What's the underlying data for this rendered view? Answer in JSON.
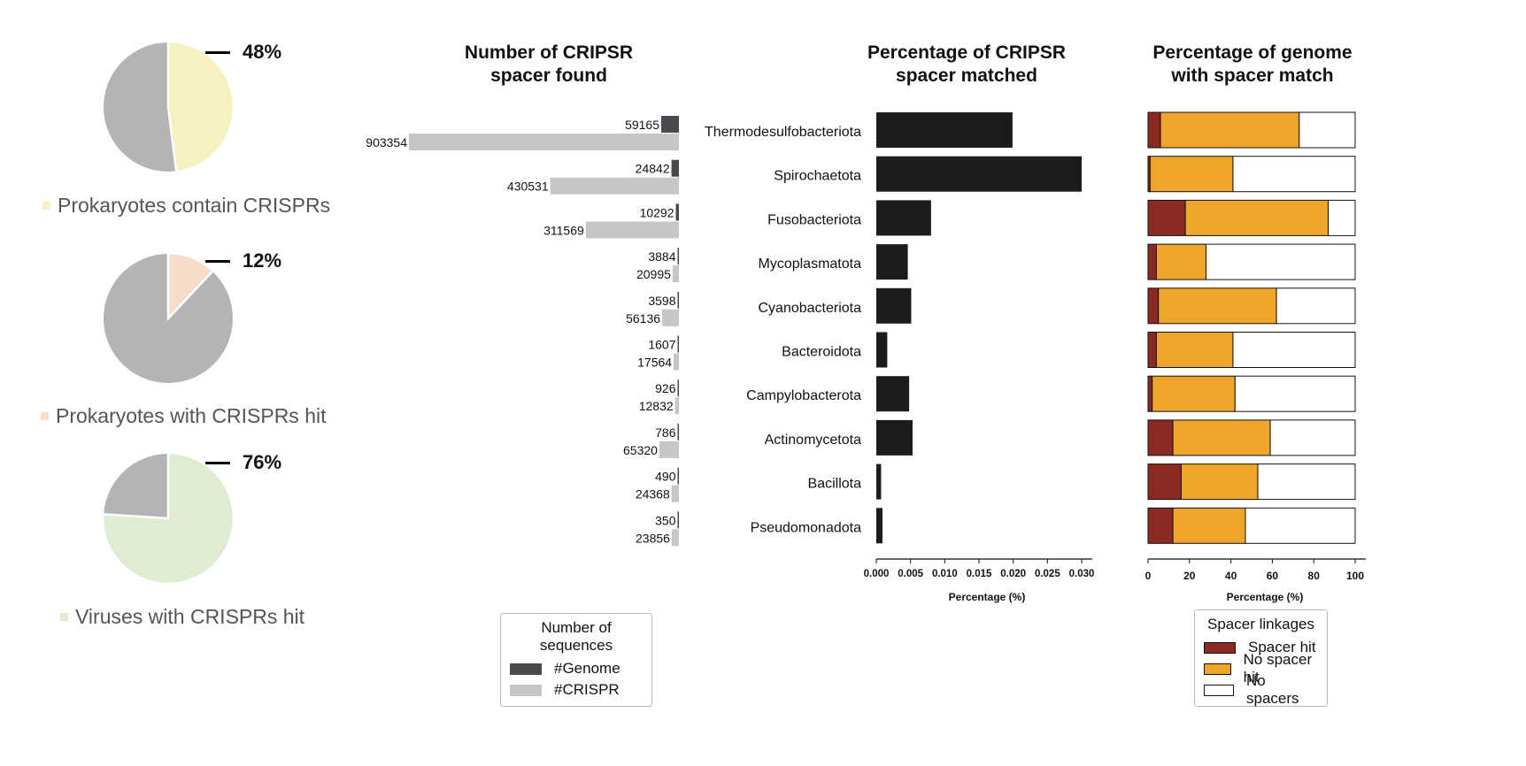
{
  "pies": [
    {
      "pct_label": "48%",
      "value": 48,
      "label": "Prokaryotes contain CRISPRs",
      "color": "#f7f1c2",
      "rest_color": "#b4b4b4"
    },
    {
      "pct_label": "12%",
      "value": 12,
      "label": "Prokaryotes with CRISPRs hit",
      "color": "#f7dcc9",
      "rest_color": "#b4b4b4"
    },
    {
      "pct_label": "76%",
      "value": 76,
      "label": "Viruses with CRISPRs hit",
      "color": "#dfecd1",
      "rest_color": "#b4b4b4"
    }
  ],
  "panel1": {
    "title_line1": "Number of CRIPSR",
    "title_line2": "spacer found",
    "legend_title": "Number of sequences",
    "legend_items": [
      {
        "label": "#Genome",
        "color": "#4a4a4e"
      },
      {
        "label": "#CRISPR",
        "color": "#c6c6c6"
      }
    ]
  },
  "panel2": {
    "title_line1": "Percentage of CRIPSR",
    "title_line2": "spacer matched",
    "xlabel": "Percentage (%)",
    "bar_color": "#1c1c1c"
  },
  "panel3": {
    "title_line1": "Percentage of genome",
    "title_line2": "with spacer match",
    "xlabel": "Percentage (%)",
    "legend_title": "Spacer linkages",
    "legend_items": [
      {
        "label": "Spacer hit",
        "color": "#8b2a22"
      },
      {
        "label": "No spacer hit",
        "color": "#eda52a"
      },
      {
        "label": "No spacers",
        "color": "#ffffff"
      }
    ]
  },
  "chart_data": [
    {
      "type": "pie",
      "slices": [
        {
          "label": "Prokaryotes contain CRISPRs",
          "value": 48
        },
        {
          "label": "Prokaryotes with CRISPRs hit",
          "value": 12
        },
        {
          "label": "Viruses with CRISPRs hit",
          "value": 76
        }
      ]
    },
    {
      "type": "bar",
      "title": "Number of CRIPSR spacer found",
      "orientation": "horizontal-reversed",
      "categories": [
        "Thermodesulfobacteriota",
        "Spirochaetota",
        "Fusobacteriota",
        "Mycoplasmatota",
        "Cyanobacteriota",
        "Bacteroidota",
        "Campylobacterota",
        "Actinomycetota",
        "Bacillota",
        "Pseudomonadota"
      ],
      "series": [
        {
          "name": "#Genome",
          "values": [
            59165,
            24842,
            10292,
            3884,
            3598,
            1607,
            926,
            786,
            490,
            350
          ]
        },
        {
          "name": "#CRISPR",
          "values": [
            903354,
            430531,
            311569,
            20995,
            56136,
            17564,
            12832,
            65320,
            24368,
            23856
          ]
        }
      ],
      "legend": "bottom"
    },
    {
      "type": "bar",
      "title": "Percentage of CRIPSR spacer matched",
      "orientation": "horizontal",
      "categories": [
        "Thermodesulfobacteriota",
        "Spirochaetota",
        "Fusobacteriota",
        "Mycoplasmatota",
        "Cyanobacteriota",
        "Bacteroidota",
        "Campylobacterota",
        "Actinomycetota",
        "Bacillota",
        "Pseudomonadota"
      ],
      "values": [
        0.0199,
        0.03,
        0.008,
        0.0046,
        0.0051,
        0.0016,
        0.0048,
        0.0053,
        0.0007,
        0.0009
      ],
      "xlabel": "Percentage (%)",
      "xlim": [
        0,
        0.031
      ],
      "xticks": [
        "0.000",
        "0.005",
        "0.010",
        "0.015",
        "0.020",
        "0.025",
        "0.030"
      ]
    },
    {
      "type": "bar",
      "stacked": true,
      "title": "Percentage of genome with spacer match",
      "orientation": "horizontal",
      "categories": [
        "Thermodesulfobacteriota",
        "Spirochaetota",
        "Fusobacteriota",
        "Mycoplasmatota",
        "Cyanobacteriota",
        "Bacteroidota",
        "Campylobacterota",
        "Actinomycetota",
        "Bacillota",
        "Pseudomonadota"
      ],
      "series": [
        {
          "name": "Spacer hit",
          "values": [
            6,
            1,
            18,
            4,
            5,
            4,
            2,
            12,
            16,
            12
          ]
        },
        {
          "name": "No spacer hit",
          "values": [
            67,
            40,
            69,
            24,
            57,
            37,
            40,
            47,
            37,
            35
          ]
        },
        {
          "name": "No spacers",
          "values": [
            27,
            59,
            13,
            72,
            38,
            59,
            58,
            41,
            47,
            53
          ]
        }
      ],
      "xlabel": "Percentage (%)",
      "xlim": [
        0,
        100
      ],
      "xticks": [
        "0",
        "20",
        "40",
        "60",
        "80",
        "100"
      ],
      "legend": "bottom"
    }
  ]
}
